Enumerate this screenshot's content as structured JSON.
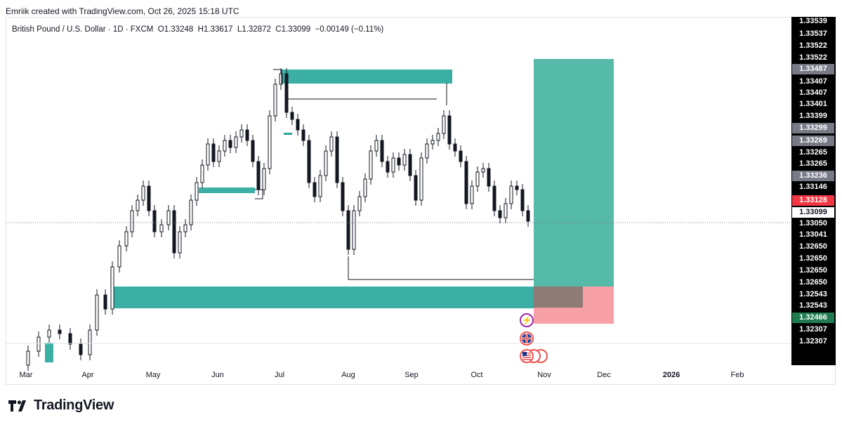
{
  "header": {
    "credit": "Emriik created with TradingView.com, Oct 26, 2025 15:18 UTC"
  },
  "symbol": {
    "name": "British Pound / U.S. Dollar",
    "interval": "1D",
    "source": "FXCM",
    "open": "O1.33248",
    "high": "H1.33617",
    "low": "L1.32872",
    "close": "C1.33099",
    "change": "−0.00149 (−0.11%)"
  },
  "chart_data": {
    "type": "candlestick",
    "instrument": "GBPUSD",
    "timeframe": "1D",
    "x_tick_labels": [
      "Mar",
      "Apr",
      "May",
      "Jun",
      "Jul",
      "Aug",
      "Sep",
      "Oct",
      "Nov",
      "Dec",
      "2026",
      "Feb"
    ],
    "price_axis_labels": [
      "1.33539",
      "1.33537",
      "1.33522",
      "1.33522",
      "1.33487",
      "1.33407",
      "1.33407",
      "1.33401",
      "1.33399",
      "1.33299",
      "1.33269",
      "1.33265",
      "1.33265",
      "1.33236",
      "1.33146",
      "1.33128",
      "1.33099",
      "1.33050",
      "1.33041",
      "1.32650",
      "1.32650",
      "1.32650",
      "1.32650",
      "1.32543",
      "1.32543",
      "1.32466",
      "1.32307",
      "1.32307"
    ],
    "current_price": "1.33099",
    "colors": {
      "up": "#26a69a",
      "down": "#ef5350",
      "candle": "#131722",
      "zone": "#26a69a",
      "target": "#4db6a4",
      "stop": "#f7a1a7",
      "current_label": "#f23645",
      "highlight_label": "#787b86",
      "green_label": "#1e7b4f"
    },
    "annotations": [
      "demand zone",
      "supply zone",
      "position tool: long target",
      "position tool: stop"
    ]
  },
  "events": [
    "lightning-event",
    "gb-flag-event",
    "us-flag-event"
  ],
  "footer": {
    "logo": "TradingView"
  }
}
